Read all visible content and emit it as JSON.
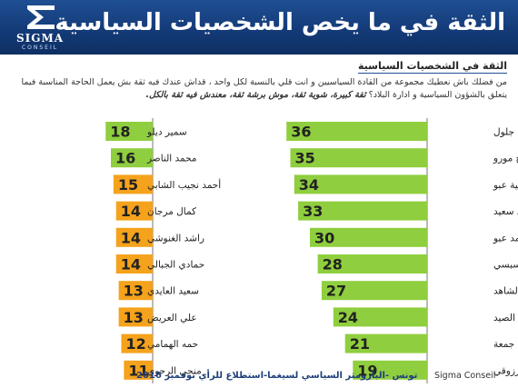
{
  "header": {
    "logo_name": "SIGMA",
    "logo_sub": "CONSEIL",
    "title": "الثقة في ما يخص الشخصيات السياسية"
  },
  "subtitle": "الثقة في الشخصيات السياسية",
  "question": {
    "text": "من فضلك باش نعطيك مجموعة من القادة السياسيين و انت قلي بالنسبة لكل واحد ، قداش عندك فيه ثقة بش يعمل الحاجة المناسبة فيما يتعلق بالشؤون السياسية و ادارة البلاد؟",
    "options": "ثقة كبيرة، شوية ثقة، موش برشة ثقة، معندش فيه ثقة بالكل."
  },
  "colors": {
    "header_bg": "#173f7e",
    "bar_green": "#8fce3e",
    "bar_orange": "#f5a21c",
    "value_text": "#222222"
  },
  "chart_data": [
    {
      "type": "bar",
      "orientation": "horizontal",
      "color": "#8fce3e",
      "xlim": [
        0,
        40
      ],
      "categories": [
        "ناجي جلول",
        "عبدالفتاح مورو",
        "سامية عبو",
        "الصافي سعيد",
        "محمد عبو",
        "الباجي قائد السبسي",
        "يوسف الشاهد",
        "الحبيب الصيد",
        "مهدي جمعة",
        "المنصف المرزوقي"
      ],
      "values": [
        36,
        35,
        34,
        33,
        30,
        28,
        27,
        24,
        21,
        19
      ]
    },
    {
      "type": "bar",
      "orientation": "horizontal",
      "colors": [
        "#8fce3e",
        "#8fce3e",
        "#f5a21c",
        "#f5a21c",
        "#f5a21c",
        "#f5a21c",
        "#f5a21c",
        "#f5a21c",
        "#f5a21c",
        "#f5a21c"
      ],
      "xlim": [
        0,
        40
      ],
      "categories": [
        "سمير ديلو",
        "محمد الناصر",
        "أحمد نجيب الشابي",
        "كمال مرجان",
        "راشد الغنوشي",
        "حمادي الجبالي",
        "سعيد العايدي",
        "علي العريض",
        "حمه الهمامي",
        "منجي الرحوي"
      ],
      "values": [
        18,
        16,
        15,
        14,
        14,
        14,
        13,
        13,
        12,
        11
      ]
    }
  ],
  "footer": {
    "source": "تونس -البارومتر السياسي لسيغما-استطلاع للرأي نوفمبر 2016",
    "brand": "Sigma Conseil"
  }
}
